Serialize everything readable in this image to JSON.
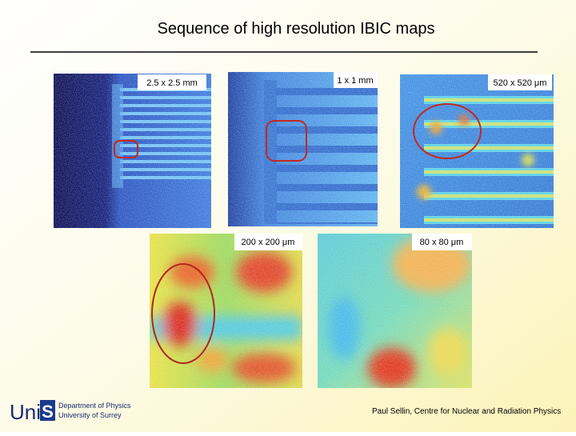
{
  "header": {
    "title": "Sequence of high resolution IBIC maps"
  },
  "maps": [
    {
      "label": "2.5 x 2.5 mm"
    },
    {
      "label": "1 x 1 mm"
    },
    {
      "label": "520 x 520 μm"
    },
    {
      "label": "200 x 200 μm"
    },
    {
      "label": "80 x 80 μm"
    }
  ],
  "logo": {
    "name": "Uni",
    "mark": "S",
    "department": "Department of Physics",
    "university": "University of Surrey"
  },
  "footer": {
    "credit": "Paul Sellin, Centre for Nuclear and Radiation Physics"
  }
}
